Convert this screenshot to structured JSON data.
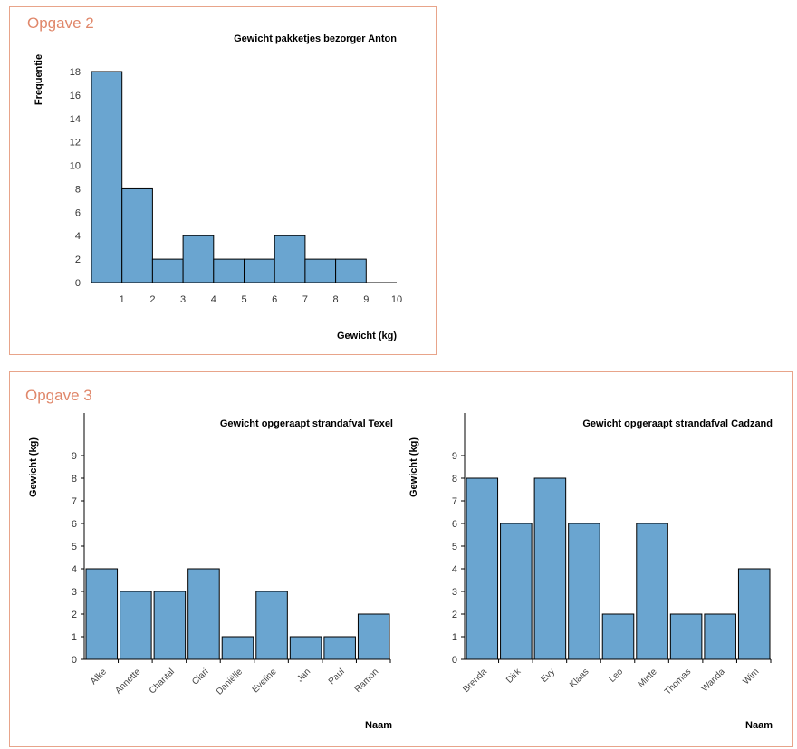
{
  "sections": [
    {
      "label": "Opgave 2"
    },
    {
      "label": "Opgave 3"
    }
  ],
  "colors": {
    "bar": "#6aa5d0",
    "bar_stroke": "#000000",
    "border": "#e8a48a",
    "heading": "#e0876a"
  },
  "chart_data": [
    {
      "type": "bar",
      "subtype": "histogram",
      "title": "Gewicht pakketjes bezorger Anton",
      "xlabel": "Gewicht (kg)",
      "ylabel": "Frequentie",
      "bins": [
        [
          0,
          1
        ],
        [
          1,
          2
        ],
        [
          2,
          3
        ],
        [
          3,
          4
        ],
        [
          4,
          5
        ],
        [
          5,
          6
        ],
        [
          6,
          7
        ],
        [
          7,
          8
        ],
        [
          8,
          9
        ],
        [
          9,
          10
        ]
      ],
      "values": [
        18,
        8,
        2,
        4,
        2,
        2,
        4,
        2,
        2,
        0
      ],
      "xticks": [
        "1",
        "2",
        "3",
        "4",
        "5",
        "6",
        "7",
        "8",
        "9",
        "10"
      ],
      "yticks": [
        "0",
        "2",
        "4",
        "6",
        "8",
        "10",
        "12",
        "14",
        "16",
        "18"
      ],
      "xlim": [
        0,
        10
      ],
      "ylim": [
        0,
        18
      ]
    },
    {
      "type": "bar",
      "title": "Gewicht opgeraapt strandafval Texel",
      "xlabel": "Naam",
      "ylabel": "Gewicht (kg)",
      "categories": [
        "Afke",
        "Annette",
        "Chantal",
        "Clari",
        "Daniëlle",
        "Eveline",
        "Jan",
        "Paul",
        "Ramon"
      ],
      "values": [
        4,
        3,
        3,
        4,
        1,
        3,
        1,
        1,
        2
      ],
      "yticks": [
        "0",
        "1",
        "2",
        "3",
        "4",
        "5",
        "6",
        "7",
        "8",
        "9"
      ],
      "ylim": [
        0,
        10
      ]
    },
    {
      "type": "bar",
      "title": "Gewicht opgeraapt strandafval Cadzand",
      "xlabel": "Naam",
      "ylabel": "Gewicht (kg)",
      "categories": [
        "Brenda",
        "Dirk",
        "Evy",
        "Klaas",
        "Leo",
        "Minte",
        "Thomas",
        "Wanda",
        "Wim"
      ],
      "values": [
        8,
        6,
        8,
        6,
        2,
        6,
        2,
        2,
        4
      ],
      "yticks": [
        "0",
        "1",
        "2",
        "3",
        "4",
        "5",
        "6",
        "7",
        "8",
        "9"
      ],
      "ylim": [
        0,
        10
      ]
    }
  ]
}
